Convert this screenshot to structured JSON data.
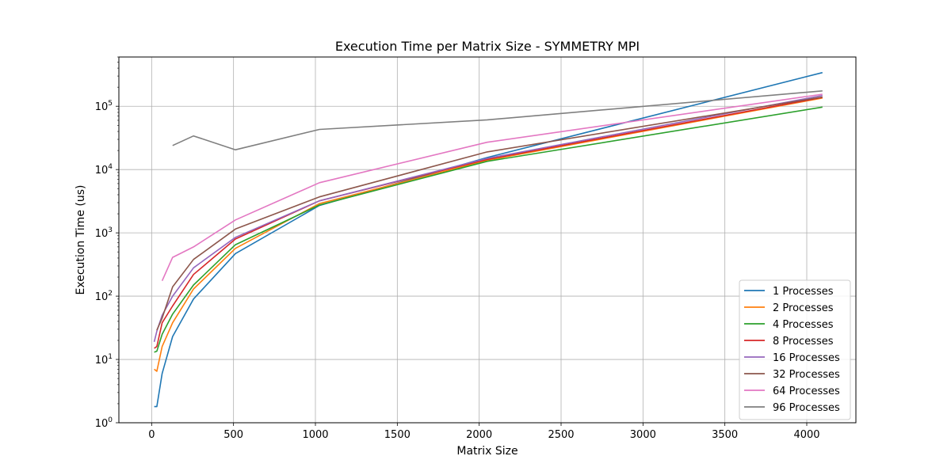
{
  "chart_data": {
    "type": "line",
    "title": "Execution Time per Matrix Size - SYMMETRY MPI",
    "xlabel": "Matrix Size",
    "ylabel": "Execution Time (us)",
    "xlim": [
      -200,
      4300
    ],
    "ylim": [
      1,
      600000
    ],
    "yscale": "log",
    "grid": true,
    "legend_position": "lower-right",
    "x_ticks": [
      0,
      500,
      1000,
      1500,
      2000,
      2500,
      3000,
      3500,
      4000
    ],
    "x_tick_labels": [
      "0",
      "500",
      "1000",
      "1500",
      "2000",
      "2500",
      "3000",
      "3500",
      "4000"
    ],
    "y_ticks": [
      1,
      10,
      100,
      1000,
      10000,
      100000
    ],
    "y_tick_labels": [
      {
        "base": "10",
        "exp": "0"
      },
      {
        "base": "10",
        "exp": "1"
      },
      {
        "base": "10",
        "exp": "2"
      },
      {
        "base": "10",
        "exp": "3"
      },
      {
        "base": "10",
        "exp": "4"
      },
      {
        "base": "10",
        "exp": "5"
      }
    ],
    "series": [
      {
        "name": "1 Processes",
        "color": "#1f77b4",
        "x": [
          16,
          32,
          64,
          128,
          256,
          512,
          1024,
          2048,
          4096
        ],
        "y": [
          1.8,
          1.8,
          6,
          23,
          90,
          470,
          2700,
          15500,
          340000
        ]
      },
      {
        "name": "2 Processes",
        "color": "#ff7f0e",
        "x": [
          16,
          32,
          64,
          128,
          256,
          512,
          1024,
          2048,
          4096
        ],
        "y": [
          7,
          6.5,
          16,
          38,
          130,
          570,
          2900,
          14000,
          135000
        ]
      },
      {
        "name": "4 Processes",
        "color": "#2ca02c",
        "x": [
          16,
          32,
          64,
          128,
          256,
          512,
          1024,
          2048,
          4096
        ],
        "y": [
          13,
          13.5,
          25,
          52,
          150,
          650,
          2750,
          13500,
          97000
        ]
      },
      {
        "name": "8 Processes",
        "color": "#d62728",
        "x": [
          16,
          32,
          64,
          128,
          256,
          512,
          1024,
          2048,
          4096
        ],
        "y": [
          15,
          16,
          38,
          70,
          220,
          800,
          3200,
          14500,
          138000
        ]
      },
      {
        "name": "16 Processes",
        "color": "#9467bd",
        "x": [
          16,
          32,
          64,
          128,
          256,
          512,
          1024,
          2048,
          4096
        ],
        "y": [
          19,
          28,
          50,
          100,
          280,
          850,
          3200,
          15000,
          148000
        ]
      },
      {
        "name": "32 Processes",
        "color": "#8c564b",
        "x": [
          32,
          64,
          128,
          256,
          512,
          1024,
          2048,
          4096
        ],
        "y": [
          29,
          45,
          140,
          380,
          1150,
          3700,
          19000,
          140000
        ]
      },
      {
        "name": "64 Processes",
        "color": "#e377c2",
        "x": [
          64,
          128,
          256,
          512,
          1024,
          2048,
          4096
        ],
        "y": [
          175,
          410,
          600,
          1600,
          6200,
          27000,
          155000
        ]
      },
      {
        "name": "96 Processes",
        "color": "#7f7f7f",
        "x": [
          128,
          256,
          512,
          1024,
          2048,
          4096
        ],
        "y": [
          24000,
          34000,
          20500,
          43000,
          61000,
          175000
        ]
      }
    ]
  }
}
